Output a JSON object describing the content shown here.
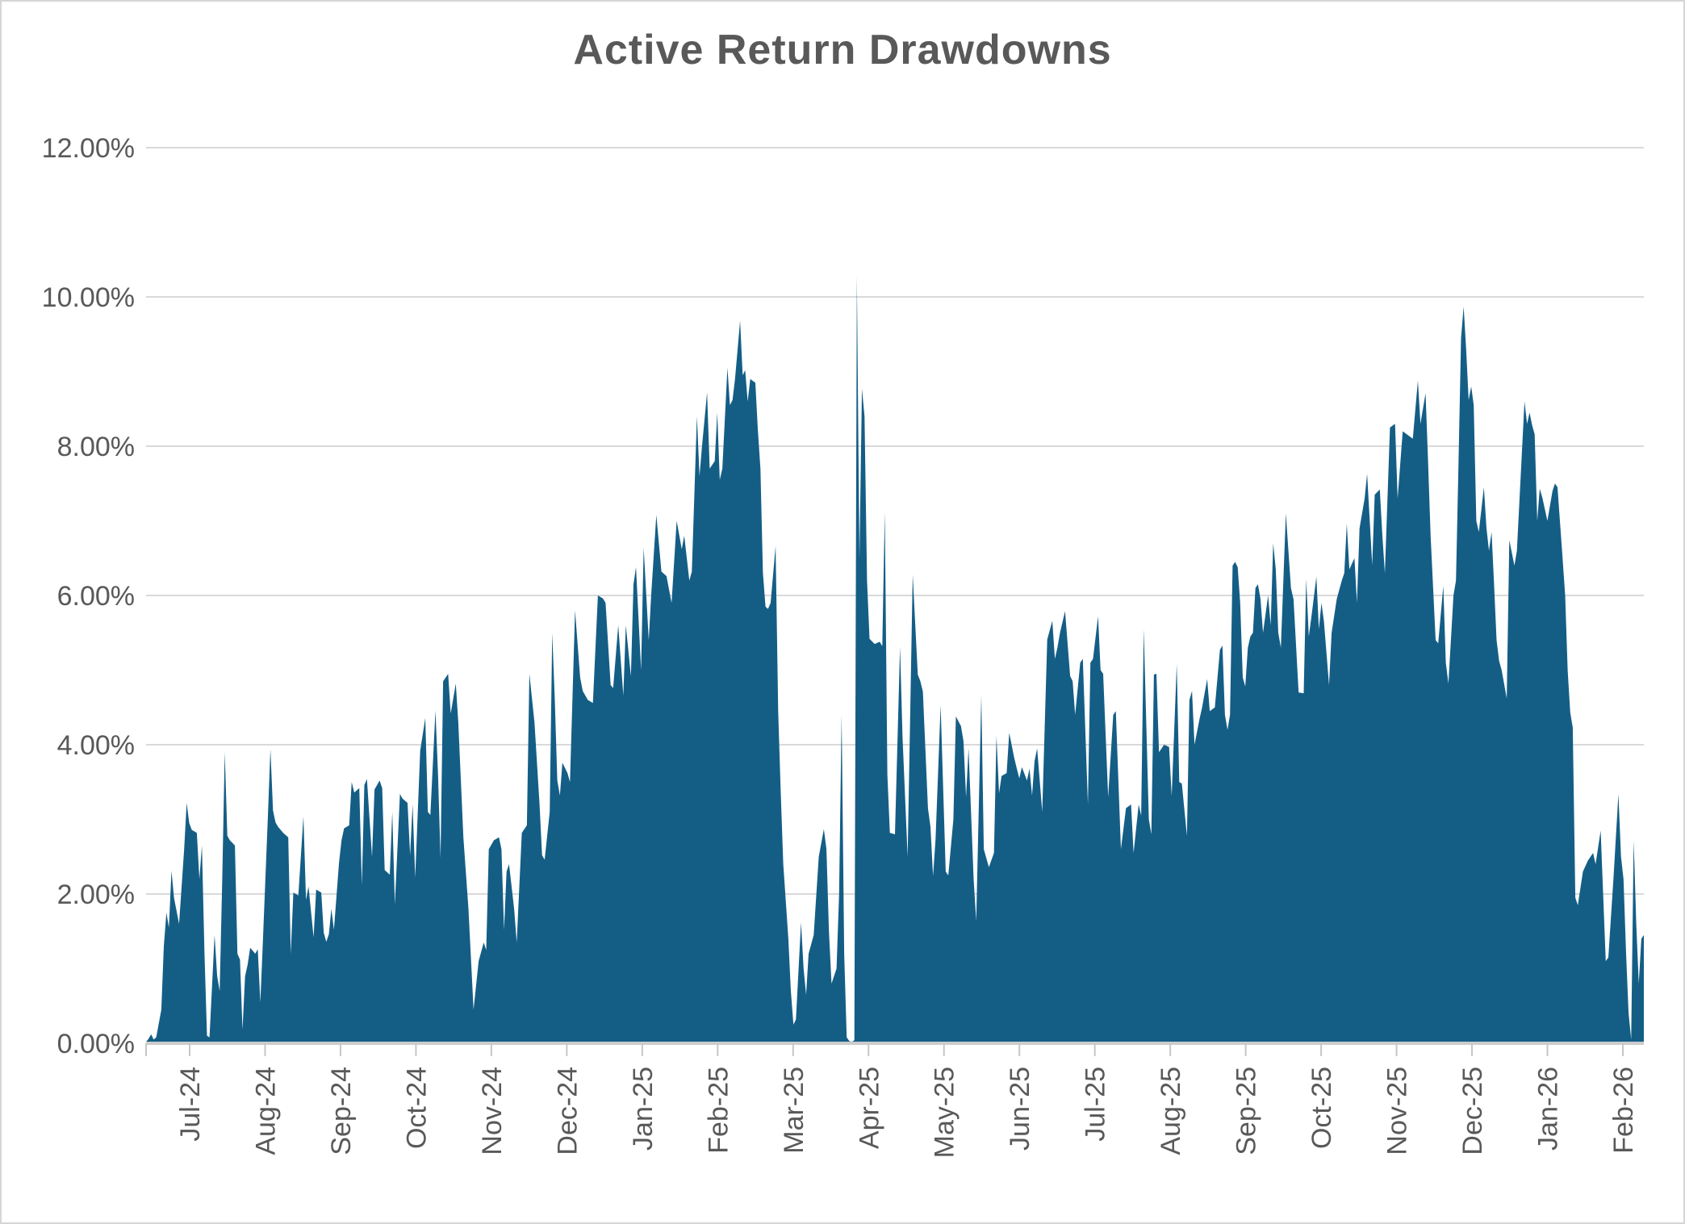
{
  "title": "Active Return Drawdowns",
  "colors": {
    "area": "#145e86",
    "grid": "#d9d9d9",
    "axis_line": "#cccccc",
    "tick": "#c6c6c6",
    "label_text": "#595959",
    "title_text": "#595959",
    "background": "#ffffff",
    "frame_border": "#d5d5d5"
  },
  "y_axis": {
    "tick_labels": [
      "12.00%",
      "10.00%",
      "8.00%",
      "6.00%",
      "4.00%",
      "2.00%",
      "0.00%"
    ],
    "min": 0,
    "max": 12
  },
  "x_axis": {
    "tick_labels": [
      "Jul-24",
      "Aug-24",
      "Sep-24",
      "Oct-24",
      "Nov-24",
      "Dec-24",
      "Jan-25",
      "Feb-25",
      "Mar-25",
      "Apr-25",
      "May-25",
      "Jun-25",
      "Jul-25",
      "Aug-25",
      "Sep-25",
      "Oct-25",
      "Nov-25",
      "Dec-25",
      "Jan-26",
      "Feb-26"
    ]
  },
  "chart_data": {
    "type": "area",
    "title": "Active Return Drawdowns",
    "xlabel": "",
    "ylabel": "",
    "ylim": [
      0,
      12
    ],
    "y_unit": "percent",
    "grid": true,
    "legend": false,
    "x_tick_labels": [
      "Jul-24",
      "Aug-24",
      "Sep-24",
      "Oct-24",
      "Nov-24",
      "Dec-24",
      "Jan-25",
      "Feb-25",
      "Mar-25",
      "Apr-25",
      "May-25",
      "Jun-25",
      "Jul-25",
      "Aug-25",
      "Sep-25",
      "Oct-25",
      "Nov-25",
      "Dec-25",
      "Jan-26",
      "Feb-26"
    ],
    "y_tick_labels": [
      "0.00%",
      "2.00%",
      "4.00%",
      "6.00%",
      "8.00%",
      "10.00%",
      "12.00%"
    ],
    "x": [
      "2024-07-01",
      "2024-07-02",
      "2024-07-03",
      "2024-07-04",
      "2024-07-05",
      "2024-07-07",
      "2024-07-08",
      "2024-07-09",
      "2024-07-10",
      "2024-07-11",
      "2024-07-12",
      "2024-07-14",
      "2024-07-16",
      "2024-07-17",
      "2024-07-18",
      "2024-07-19",
      "2024-07-21",
      "2024-07-22",
      "2024-07-23",
      "2024-07-24",
      "2024-07-25",
      "2024-07-26",
      "2024-07-28",
      "2024-07-29",
      "2024-07-30",
      "2024-07-31",
      "2024-08-01",
      "2024-08-02",
      "2024-08-03",
      "2024-08-05",
      "2024-08-06",
      "2024-08-07",
      "2024-08-08",
      "2024-08-09",
      "2024-08-10",
      "2024-08-11",
      "2024-08-13",
      "2024-08-14",
      "2024-08-15",
      "2024-08-16",
      "2024-08-18",
      "2024-08-19",
      "2024-08-20",
      "2024-08-21",
      "2024-08-22",
      "2024-08-24",
      "2024-08-26",
      "2024-08-27",
      "2024-08-28",
      "2024-08-30",
      "2024-09-01",
      "2024-09-02",
      "2024-09-03",
      "2024-09-05",
      "2024-09-06",
      "2024-09-08",
      "2024-09-09",
      "2024-09-10",
      "2024-09-11",
      "2024-09-12",
      "2024-09-13",
      "2024-09-15",
      "2024-09-16",
      "2024-09-17",
      "2024-09-19",
      "2024-09-20",
      "2024-09-21",
      "2024-09-23",
      "2024-09-24",
      "2024-09-25",
      "2024-09-26",
      "2024-09-28",
      "2024-09-29",
      "2024-10-01",
      "2024-10-02",
      "2024-10-03",
      "2024-10-05",
      "2024-10-06",
      "2024-10-07",
      "2024-10-09",
      "2024-10-10",
      "2024-10-12",
      "2024-10-13",
      "2024-10-14",
      "2024-10-15",
      "2024-10-17",
      "2024-10-19",
      "2024-10-20",
      "2024-10-21",
      "2024-10-23",
      "2024-10-24",
      "2024-10-25",
      "2024-10-26",
      "2024-10-28",
      "2024-10-29",
      "2024-10-31",
      "2024-11-01",
      "2024-11-03",
      "2024-11-05",
      "2024-11-07",
      "2024-11-09",
      "2024-11-11",
      "2024-11-12",
      "2024-11-13",
      "2024-11-15",
      "2024-11-17",
      "2024-11-18",
      "2024-11-19",
      "2024-11-20",
      "2024-11-21",
      "2024-11-23",
      "2024-11-24",
      "2024-11-26",
      "2024-11-28",
      "2024-11-29",
      "2024-12-01",
      "2024-12-03",
      "2024-12-04",
      "2024-12-05",
      "2024-12-07",
      "2024-12-08",
      "2024-12-09",
      "2024-12-10",
      "2024-12-11",
      "2024-12-12",
      "2024-12-14",
      "2024-12-15",
      "2024-12-17",
      "2024-12-19",
      "2024-12-20",
      "2024-12-22",
      "2024-12-24",
      "2024-12-26",
      "2024-12-28",
      "2024-12-29",
      "2024-12-31",
      "2025-01-01",
      "2025-01-03",
      "2025-01-05",
      "2025-01-06",
      "2025-01-08",
      "2025-01-09",
      "2025-01-10",
      "2025-01-12",
      "2025-01-13",
      "2025-01-15",
      "2025-01-16",
      "2025-01-18",
      "2025-01-20",
      "2025-01-22",
      "2025-01-24",
      "2025-01-26",
      "2025-01-28",
      "2025-01-29",
      "2025-01-31",
      "2025-02-01",
      "2025-02-03",
      "2025-02-04",
      "2025-02-05",
      "2025-02-07",
      "2025-02-08",
      "2025-02-10",
      "2025-02-11",
      "2025-02-12",
      "2025-02-13",
      "2025-02-15",
      "2025-02-16",
      "2025-02-17",
      "2025-02-18",
      "2025-02-20",
      "2025-02-21",
      "2025-02-22",
      "2025-02-23",
      "2025-02-24",
      "2025-02-26",
      "2025-02-27",
      "2025-02-28",
      "2025-03-01",
      "2025-03-02",
      "2025-03-03",
      "2025-03-04",
      "2025-03-06",
      "2025-03-07",
      "2025-03-08",
      "2025-03-09",
      "2025-03-11",
      "2025-03-12",
      "2025-03-13",
      "2025-03-14",
      "2025-03-16",
      "2025-03-17",
      "2025-03-18",
      "2025-03-19",
      "2025-03-21",
      "2025-03-23",
      "2025-03-25",
      "2025-03-26",
      "2025-03-27",
      "2025-03-28",
      "2025-03-30",
      "2025-03-31",
      "2025-04-01",
      "2025-04-02",
      "2025-04-03",
      "2025-04-04",
      "2025-04-05",
      "2025-04-06",
      "2025-04-07",
      "2025-04-08",
      "2025-04-09",
      "2025-04-10",
      "2025-04-11",
      "2025-04-12",
      "2025-04-14",
      "2025-04-16",
      "2025-04-17",
      "2025-04-18",
      "2025-04-19",
      "2025-04-20",
      "2025-04-22",
      "2025-04-24",
      "2025-04-25",
      "2025-04-27",
      "2025-04-29",
      "2025-05-01",
      "2025-05-02",
      "2025-05-03",
      "2025-05-05",
      "2025-05-06",
      "2025-05-07",
      "2025-05-08",
      "2025-05-10",
      "2025-05-12",
      "2025-05-13",
      "2025-05-15",
      "2025-05-16",
      "2025-05-18",
      "2025-05-19",
      "2025-05-20",
      "2025-05-21",
      "2025-05-23",
      "2025-05-24",
      "2025-05-26",
      "2025-05-27",
      "2025-05-29",
      "2025-05-31",
      "2025-06-01",
      "2025-06-02",
      "2025-06-03",
      "2025-06-05",
      "2025-06-06",
      "2025-06-08",
      "2025-06-09",
      "2025-06-10",
      "2025-06-11",
      "2025-06-13",
      "2025-06-14",
      "2025-06-15",
      "2025-06-16",
      "2025-06-17",
      "2025-06-19",
      "2025-06-21",
      "2025-06-23",
      "2025-06-24",
      "2025-06-25",
      "2025-06-26",
      "2025-06-28",
      "2025-06-30",
      "2025-07-01",
      "2025-07-02",
      "2025-07-04",
      "2025-07-05",
      "2025-07-07",
      "2025-07-08",
      "2025-07-09",
      "2025-07-11",
      "2025-07-12",
      "2025-07-13",
      "2025-07-15",
      "2025-07-17",
      "2025-07-18",
      "2025-07-20",
      "2025-07-22",
      "2025-07-24",
      "2025-07-25",
      "2025-07-27",
      "2025-07-28",
      "2025-07-29",
      "2025-07-31",
      "2025-08-01",
      "2025-08-02",
      "2025-08-03",
      "2025-08-04",
      "2025-08-06",
      "2025-08-08",
      "2025-08-09",
      "2025-08-11",
      "2025-08-12",
      "2025-08-13",
      "2025-08-15",
      "2025-08-16",
      "2025-08-17",
      "2025-08-18",
      "2025-08-20",
      "2025-08-21",
      "2025-08-23",
      "2025-08-24",
      "2025-08-26",
      "2025-08-28",
      "2025-08-29",
      "2025-08-30",
      "2025-08-31",
      "2025-09-01",
      "2025-09-02",
      "2025-09-03",
      "2025-09-04",
      "2025-09-05",
      "2025-09-06",
      "2025-09-07",
      "2025-09-08",
      "2025-09-09",
      "2025-09-10",
      "2025-09-11",
      "2025-09-12",
      "2025-09-13",
      "2025-09-14",
      "2025-09-16",
      "2025-09-17",
      "2025-09-18",
      "2025-09-19",
      "2025-09-20",
      "2025-09-21",
      "2025-09-23",
      "2025-09-25",
      "2025-09-26",
      "2025-09-28",
      "2025-09-30",
      "2025-10-01",
      "2025-10-02",
      "2025-10-03",
      "2025-10-05",
      "2025-10-06",
      "2025-10-07",
      "2025-10-08",
      "2025-10-10",
      "2025-10-11",
      "2025-10-13",
      "2025-10-15",
      "2025-10-16",
      "2025-10-17",
      "2025-10-18",
      "2025-10-20",
      "2025-10-21",
      "2025-10-22",
      "2025-10-24",
      "2025-10-25",
      "2025-10-27",
      "2025-10-28",
      "2025-10-30",
      "2025-10-31",
      "2025-11-01",
      "2025-11-03",
      "2025-11-05",
      "2025-11-06",
      "2025-11-08",
      "2025-11-10",
      "2025-11-12",
      "2025-11-14",
      "2025-11-15",
      "2025-11-17",
      "2025-11-18",
      "2025-11-19",
      "2025-11-21",
      "2025-11-22",
      "2025-11-24",
      "2025-11-25",
      "2025-11-26",
      "2025-11-28",
      "2025-11-29",
      "2025-11-30",
      "2025-12-01",
      "2025-12-02",
      "2025-12-03",
      "2025-12-04",
      "2025-12-05",
      "2025-12-06",
      "2025-12-07",
      "2025-12-08",
      "2025-12-10",
      "2025-12-11",
      "2025-12-12",
      "2025-12-13",
      "2025-12-14",
      "2025-12-15",
      "2025-12-16",
      "2025-12-17",
      "2025-12-19",
      "2025-12-20",
      "2025-12-22",
      "2025-12-23",
      "2025-12-26",
      "2025-12-27",
      "2025-12-28",
      "2025-12-29",
      "2025-12-30",
      "2025-12-31",
      "2026-01-01",
      "2026-01-02",
      "2026-01-04",
      "2026-01-06",
      "2026-01-07",
      "2026-01-08",
      "2026-01-10",
      "2026-01-11",
      "2026-01-12",
      "2026-01-13",
      "2026-01-14",
      "2026-01-15",
      "2026-01-16",
      "2026-01-18",
      "2026-01-20",
      "2026-01-22",
      "2026-01-23",
      "2026-01-25",
      "2026-01-27",
      "2026-01-28",
      "2026-01-30",
      "2026-02-01",
      "2026-02-02",
      "2026-02-03",
      "2026-02-04",
      "2026-02-05",
      "2026-02-06",
      "2026-02-07",
      "2026-02-08",
      "2026-02-09",
      "2026-02-10",
      "2026-02-11"
    ],
    "y": [
      0.02,
      0.06,
      0.12,
      0.05,
      0.08,
      0.45,
      1.3,
      1.75,
      1.55,
      2.31,
      1.95,
      1.6,
      2.6,
      3.22,
      2.95,
      2.86,
      2.82,
      2.2,
      2.65,
      1.2,
      0.1,
      0.08,
      1.45,
      0.9,
      0.7,
      2.2,
      3.9,
      2.78,
      2.72,
      2.65,
      1.2,
      1.12,
      0.18,
      0.9,
      1.05,
      1.28,
      1.2,
      1.26,
      0.55,
      1.35,
      3.05,
      3.94,
      3.12,
      2.96,
      2.9,
      2.82,
      2.76,
      1.2,
      2.02,
      1.98,
      3.04,
      1.92,
      2.1,
      1.42,
      2.06,
      2.02,
      1.48,
      1.36,
      1.46,
      1.8,
      1.52,
      2.42,
      2.72,
      2.88,
      2.92,
      3.5,
      3.36,
      3.42,
      2.12,
      3.46,
      3.54,
      2.5,
      3.4,
      3.52,
      3.42,
      2.32,
      2.26,
      3.1,
      1.86,
      3.34,
      3.28,
      3.22,
      2.52,
      3.2,
      2.22,
      3.92,
      4.36,
      3.1,
      3.06,
      4.46,
      3.6,
      2.48,
      4.85,
      4.95,
      4.42,
      4.82,
      4.3,
      2.76,
      1.8,
      0.45,
      1.1,
      1.35,
      1.25,
      2.6,
      2.72,
      2.76,
      2.6,
      1.52,
      2.3,
      2.4,
      1.8,
      1.35,
      2.82,
      2.92,
      4.95,
      4.3,
      3.2,
      2.52,
      2.46,
      3.1,
      5.5,
      4.6,
      3.52,
      3.32,
      3.76,
      3.62,
      3.5,
      5.8,
      4.9,
      4.72,
      4.6,
      4.56,
      6.0,
      5.96,
      5.9,
      4.8,
      4.76,
      5.6,
      4.66,
      5.6,
      4.92,
      6.15,
      6.38,
      5.0,
      6.64,
      5.4,
      6.02,
      7.08,
      6.32,
      6.26,
      5.9,
      7.0,
      6.62,
      6.8,
      6.2,
      6.32,
      8.4,
      7.6,
      8.0,
      8.72,
      7.7,
      7.8,
      8.45,
      7.55,
      7.7,
      9.05,
      8.55,
      8.62,
      8.9,
      9.68,
      8.95,
      9.02,
      8.6,
      8.9,
      8.85,
      8.22,
      7.7,
      6.3,
      5.85,
      5.82,
      5.9,
      6.66,
      4.45,
      3.38,
      2.4,
      1.4,
      0.7,
      0.25,
      0.32,
      1.62,
      1.0,
      0.65,
      1.2,
      1.45,
      2.5,
      2.87,
      2.6,
      1.5,
      0.8,
      1.0,
      2.0,
      4.4,
      1.2,
      0.08,
      0.03,
      0.02,
      0.04,
      10.28,
      6.5,
      8.77,
      8.4,
      6.2,
      5.42,
      5.35,
      5.38,
      5.32,
      7.12,
      3.6,
      2.82,
      2.8,
      5.31,
      4.1,
      2.5,
      6.28,
      4.94,
      4.85,
      4.71,
      3.15,
      2.9,
      2.24,
      2.73,
      4.53,
      2.3,
      2.25,
      3.0,
      4.38,
      4.25,
      4.05,
      3.3,
      3.95,
      2.2,
      1.64,
      4.66,
      2.6,
      2.36,
      2.55,
      4.12,
      3.35,
      3.58,
      3.62,
      4.16,
      3.82,
      3.68,
      3.55,
      3.7,
      3.52,
      3.68,
      3.32,
      3.78,
      3.95,
      3.1,
      5.41,
      5.66,
      5.15,
      5.3,
      5.5,
      5.79,
      4.92,
      4.85,
      4.4,
      5.1,
      5.15,
      3.2,
      5.1,
      5.15,
      5.72,
      5.0,
      4.95,
      3.3,
      4.4,
      4.45,
      2.6,
      3.15,
      3.2,
      2.55,
      3.2,
      3.05,
      5.55,
      3.0,
      2.8,
      4.94,
      4.95,
      3.9,
      4.0,
      3.97,
      3.31,
      5.08,
      3.5,
      3.48,
      2.78,
      4.6,
      4.72,
      4.0,
      4.35,
      4.5,
      4.88,
      4.45,
      4.5,
      5.27,
      5.33,
      4.4,
      4.2,
      4.4,
      6.4,
      6.45,
      6.38,
      5.9,
      4.9,
      4.78,
      5.3,
      5.45,
      5.5,
      6.1,
      6.15,
      5.95,
      5.5,
      6.0,
      5.6,
      6.7,
      6.35,
      5.5,
      5.3,
      7.1,
      6.1,
      5.95,
      4.7,
      4.69,
      6.22,
      5.45,
      5.7,
      6.25,
      5.55,
      5.9,
      5.65,
      4.8,
      5.5,
      5.95,
      6.2,
      6.3,
      6.96,
      6.35,
      6.5,
      5.9,
      6.9,
      7.3,
      7.63,
      6.41,
      7.35,
      7.42,
      6.8,
      6.3,
      8.25,
      8.3,
      7.3,
      8.2,
      8.15,
      8.1,
      8.88,
      8.3,
      8.71,
      7.8,
      6.79,
      5.4,
      5.36,
      6.13,
      5.1,
      4.82,
      6.0,
      6.2,
      7.8,
      9.45,
      9.87,
      9.3,
      8.62,
      8.8,
      8.55,
      7.0,
      6.85,
      7.45,
      6.9,
      6.6,
      6.85,
      6.15,
      5.4,
      5.12,
      5.0,
      4.62,
      6.74,
      6.4,
      6.6,
      8.6,
      8.3,
      8.45,
      8.28,
      8.16,
      7.0,
      7.43,
      7.31,
      7.0,
      7.4,
      7.5,
      7.45,
      6.5,
      6.0,
      5.0,
      4.43,
      4.23,
      1.95,
      1.85,
      2.3,
      2.45,
      2.55,
      2.4,
      2.85,
      1.1,
      1.15,
      2.2,
      3.34,
      2.5,
      2.2,
      1.2,
      0.4,
      0.05,
      2.72,
      1.6,
      0.8,
      1.4,
      1.45
    ]
  }
}
